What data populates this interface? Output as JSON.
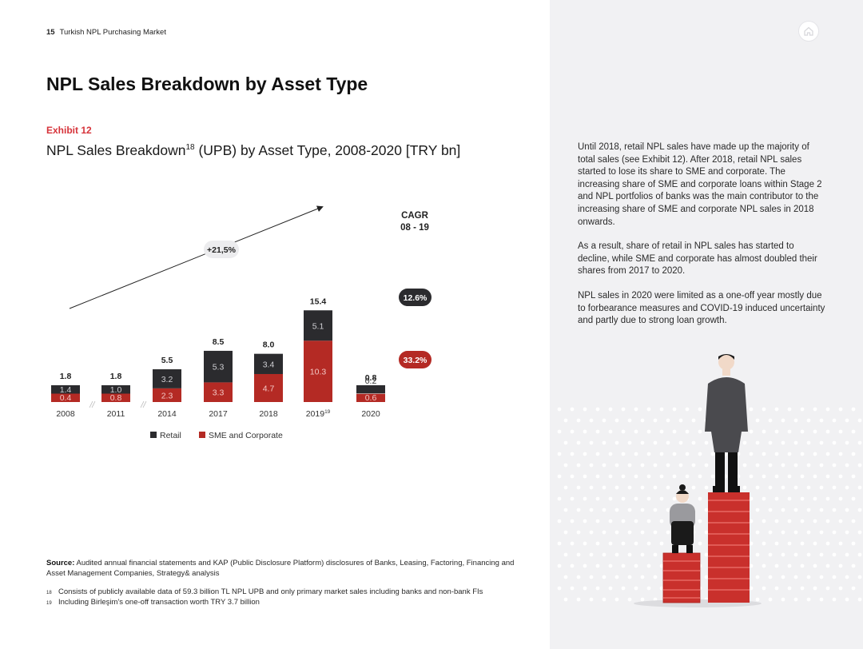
{
  "header": {
    "page_number": "15",
    "report_title": "Turkish NPL Purchasing Market"
  },
  "title": "NPL Sales Breakdown by Asset Type",
  "exhibit": {
    "label": "Exhibit 12",
    "title_main": "NPL Sales Breakdown",
    "title_sup": "18",
    "title_rest": " (UPB) by Asset Type, 2008-2020 [TRY bn]"
  },
  "chart_data": {
    "type": "bar",
    "stacked": true,
    "categories": [
      "2008",
      "2011",
      "2014",
      "2017",
      "2018",
      "2019",
      "2020"
    ],
    "category_superscripts": [
      "",
      "",
      "",
      "",
      "",
      "19",
      ""
    ],
    "totals": [
      "1.8",
      "1.8",
      "5.5",
      "8.5",
      "8.0",
      "15.4",
      "0.8"
    ],
    "series": [
      {
        "name": "Retail",
        "color": "#2b2b2e",
        "values": [
          1.4,
          1.0,
          3.2,
          5.3,
          3.4,
          5.1,
          0.2
        ],
        "labels": [
          "1.4",
          "1.0",
          "3.2",
          "5.3",
          "3.4",
          "5.1",
          "0.2"
        ]
      },
      {
        "name": "SME and Corporate",
        "color": "#b42a24",
        "values": [
          0.4,
          0.8,
          2.3,
          3.3,
          4.7,
          10.3,
          0.6
        ],
        "labels": [
          "0.4",
          "0.8",
          "2.3",
          "3.3",
          "4.7",
          "10.3",
          "0.6"
        ]
      }
    ],
    "axis_breaks_after": [
      "2008",
      "2011"
    ],
    "trend_annotation": "+21,5%",
    "cagr": {
      "title_line1": "CAGR",
      "title_line2": "08 - 19",
      "values": [
        {
          "series": "Retail",
          "label": "12.6%",
          "color": "#2b2b2e"
        },
        {
          "series": "SME and Corporate",
          "label": "33.2%",
          "color": "#b42a24"
        }
      ]
    },
    "legend_position": "bottom",
    "grid": false
  },
  "body_paragraphs": [
    "Until 2018, retail NPL sales have made up the majority of total sales (see Exhibit 12). After 2018, retail NPL sales started to lose its share to SME and corporate. The increasing share of SME and corporate loans within Stage 2 and NPL portfolios of banks was the main contributor to the increasing share of SME and corporate NPL sales in 2018 onwards.",
    "As a result, share of retail in NPL sales has started to decline, while SME and corporate has almost doubled their shares from 2017 to 2020.",
    "NPL sales in 2020 were limited as a one-off year mostly due to forbearance measures and COVID-19 induced uncertainty and partly due to strong loan growth."
  ],
  "source": {
    "label": "Source:",
    "text": " Audited annual financial statements and KAP (Public Disclosure Platform) disclosures of Banks, Leasing, Factoring, Financing and Asset Management Companies, Strategy& analysis"
  },
  "footnotes": [
    {
      "num": "18",
      "text": "Consists of publicly available data of 59.3 billion TL NPL UPB and only primary market sales including banks and non-bank FIs"
    },
    {
      "num": "19",
      "text": "Including Birleşim's one-off transaction worth TRY 3.7 billion"
    }
  ],
  "icons": {
    "home": "home-icon"
  },
  "colors": {
    "accent_red": "#d6333a",
    "bar_dark": "#2b2b2e",
    "bar_red": "#b42a24",
    "panel_bg": "#f1f1f3"
  }
}
